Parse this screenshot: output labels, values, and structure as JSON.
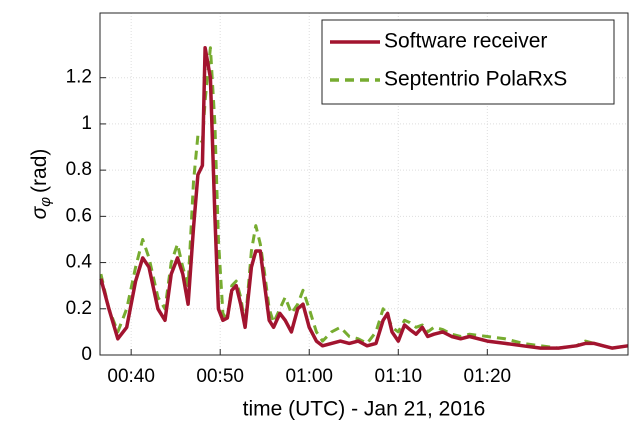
{
  "chart_data": {
    "type": "line",
    "xlabel": "time (UTC) - Jan 21, 2016",
    "ylabel": {
      "symbol": "σ",
      "subscript": "φ",
      "unit": "(rad)"
    },
    "xlim": [
      36.5,
      95.8
    ],
    "ylim": [
      0,
      1.48
    ],
    "xticks": [
      {
        "value": 40,
        "label": "00:40"
      },
      {
        "value": 50,
        "label": "00:50"
      },
      {
        "value": 60,
        "label": "01:00"
      },
      {
        "value": 70,
        "label": "01:10"
      },
      {
        "value": 80,
        "label": "01:20"
      }
    ],
    "yticks": [
      0,
      0.2,
      0.4,
      0.6,
      0.8,
      1,
      1.2
    ],
    "grid": true,
    "legend": "upper right",
    "x": [
      36.6,
      37.5,
      38.5,
      39.5,
      40.5,
      41.3,
      42,
      43,
      43.8,
      44.5,
      45.2,
      45.8,
      46.4,
      47,
      47.5,
      48,
      48.3,
      48.9,
      49.4,
      49.8,
      50.3,
      50.8,
      51.3,
      51.8,
      52.3,
      52.8,
      53.5,
      54,
      54.5,
      55,
      55.5,
      56,
      56.7,
      57.3,
      58,
      58.7,
      59.3,
      60,
      60.8,
      61.5,
      62.5,
      63.5,
      64.5,
      65.5,
      66.5,
      67.5,
      68.3,
      68.8,
      69.3,
      70,
      70.7,
      71.3,
      72,
      72.7,
      73.3,
      74,
      75,
      76,
      77,
      78,
      80,
      82,
      84,
      86,
      88,
      90,
      91,
      92,
      93,
      94,
      95.8
    ],
    "series": [
      {
        "name": "Software receiver",
        "color": "#a2142f",
        "dash": "solid",
        "values": [
          0.33,
          0.2,
          0.07,
          0.12,
          0.32,
          0.42,
          0.38,
          0.2,
          0.15,
          0.35,
          0.42,
          0.35,
          0.22,
          0.55,
          0.78,
          0.82,
          1.33,
          1.2,
          0.6,
          0.2,
          0.15,
          0.16,
          0.28,
          0.3,
          0.22,
          0.12,
          0.38,
          0.45,
          0.45,
          0.3,
          0.15,
          0.12,
          0.18,
          0.15,
          0.1,
          0.2,
          0.22,
          0.12,
          0.06,
          0.04,
          0.05,
          0.06,
          0.05,
          0.06,
          0.04,
          0.05,
          0.15,
          0.18,
          0.1,
          0.06,
          0.13,
          0.11,
          0.09,
          0.12,
          0.08,
          0.09,
          0.1,
          0.08,
          0.07,
          0.08,
          0.06,
          0.05,
          0.04,
          0.03,
          0.03,
          0.04,
          0.05,
          0.05,
          0.04,
          0.03,
          0.04
        ]
      },
      {
        "name": "Septentrio PolaRxS",
        "color": "#77ac30",
        "dash": "dashed",
        "values": [
          0.35,
          0.2,
          0.1,
          0.2,
          0.38,
          0.5,
          0.42,
          0.25,
          0.2,
          0.4,
          0.48,
          0.38,
          0.3,
          0.75,
          0.95,
          0.92,
          1.1,
          1.33,
          1.0,
          0.5,
          0.18,
          0.15,
          0.3,
          0.32,
          0.25,
          0.13,
          0.45,
          0.56,
          0.48,
          0.35,
          0.2,
          0.14,
          0.2,
          0.25,
          0.18,
          0.22,
          0.28,
          0.2,
          0.1,
          0.06,
          0.1,
          0.12,
          0.08,
          0.07,
          0.05,
          0.1,
          0.2,
          0.17,
          0.12,
          0.1,
          0.15,
          0.14,
          0.12,
          0.13,
          0.1,
          0.12,
          0.11,
          0.09,
          0.08,
          0.09,
          0.08,
          0.07,
          0.05,
          0.04,
          0.03,
          0.04,
          0.06,
          0.05,
          0.04,
          0.03,
          0.04
        ]
      }
    ]
  }
}
